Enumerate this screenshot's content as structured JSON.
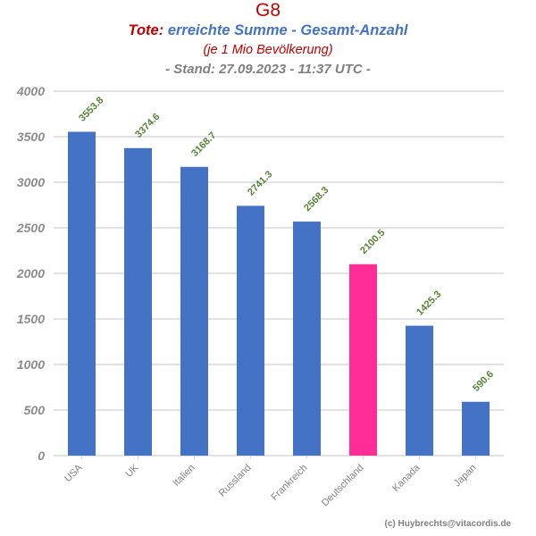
{
  "header": {
    "title": "G8",
    "subtitle_keyword": "Tote:",
    "subtitle_rest": "erreichte Summe - Gesamt-Anzahl",
    "note": "(je 1 Mio Bevölkerung)",
    "stand": "- Stand: 27.09.2023 - 11:37 UTC -"
  },
  "credit": "(c) Huybrechts@vitacordis.de",
  "colors": {
    "bar": "#4472c4",
    "highlight": "#ff2d96",
    "grid": "#d9d9d9",
    "label": "#548235"
  },
  "chart_data": {
    "type": "bar",
    "title": "G8",
    "categories": [
      "USA",
      "UK",
      "Italien",
      "Russland",
      "Frankreich",
      "Deutschland",
      "Kanada",
      "Japan"
    ],
    "values": [
      3553.8,
      3374.6,
      3168.7,
      2741.3,
      2568.3,
      2100.5,
      1425.3,
      590.6
    ],
    "value_labels": [
      "3553.8",
      "3374.6",
      "3168.7",
      "2741.3",
      "2568.3",
      "2100.5",
      "1425.3",
      "590.6"
    ],
    "highlight_category": "Deutschland",
    "ylim": [
      0,
      4000
    ],
    "yticks": [
      0,
      500,
      1000,
      1500,
      2000,
      2500,
      3000,
      3500,
      4000
    ],
    "ytick_labels": [
      "0",
      "500",
      "1000",
      "1500",
      "2000",
      "2500",
      "3000",
      "3500",
      "4000"
    ],
    "xlabel": "",
    "ylabel": "",
    "grid": true
  }
}
